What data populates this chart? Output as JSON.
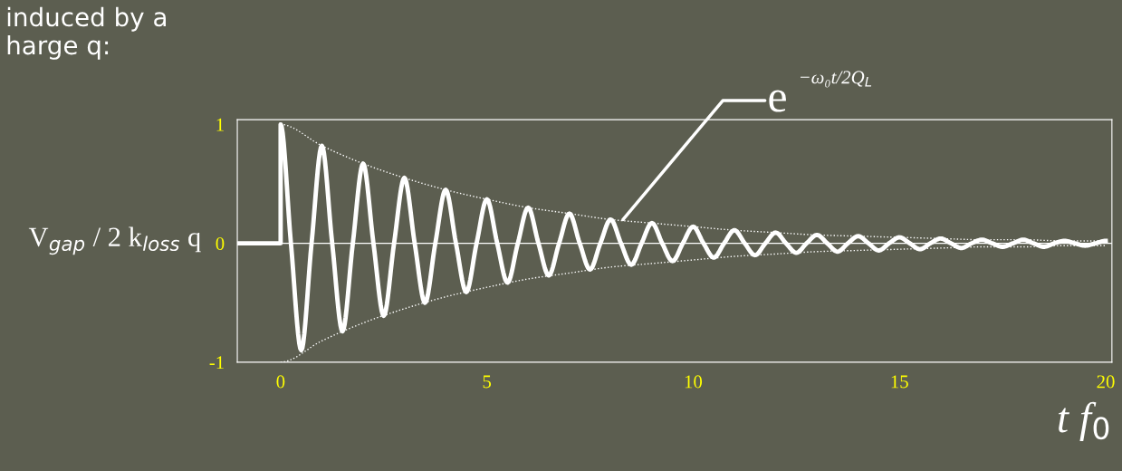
{
  "chart_data": {
    "type": "line",
    "xlabel": "t f$_{0}$",
    "ylabel": "V$_{gap}$ / 2 k$_{loss}$ q",
    "annotations": [
      "induced by a\nharge q:",
      {
        "text": "e",
        "x": 8.3,
        "y": 0.2
      },
      "−ω₀t/2Q$_{L}$"
    ],
    "series": [
      {
        "color": "#ffffff",
        "line_style": "solid",
        "x": [
          -1.05,
          0,
          0,
          0.25,
          0.5,
          0.75,
          1,
          1.25,
          1.5,
          1.75,
          2,
          2.25,
          2.5,
          2.75,
          3,
          3.25,
          3.5,
          3.75,
          4,
          4.25,
          4.5,
          4.75,
          5,
          5.25,
          5.5,
          5.75,
          6,
          6.25,
          6.5,
          6.75,
          7,
          7.25,
          7.5,
          7.75,
          8,
          8.25,
          8.5,
          8.75,
          9,
          9.25,
          9.5,
          9.75,
          10,
          10.25,
          10.5,
          10.75,
          11,
          11.25,
          11.5,
          11.75,
          12,
          12.25,
          12.5,
          12.75,
          13,
          13.25,
          13.5,
          13.75,
          14,
          14.25,
          14.5,
          14.75,
          15,
          15.25,
          15.5,
          15.75,
          16,
          16.25,
          16.5,
          16.75,
          17,
          17.25,
          17.5,
          17.75,
          18,
          18.25,
          18.5,
          18.75,
          19,
          19.25,
          19.5,
          19.75,
          20
        ],
        "values": [
          0,
          0,
          1,
          0,
          -0.9,
          0,
          0.82,
          0,
          -0.74,
          0,
          0.67,
          0,
          -0.61,
          0,
          0.55,
          0,
          -0.5,
          0,
          0.45,
          0,
          -0.41,
          0,
          0.37,
          0,
          -0.33,
          0,
          0.3,
          0,
          -0.27,
          0,
          0.25,
          0,
          -0.22,
          0,
          0.2,
          0,
          -0.18,
          0,
          0.17,
          0,
          -0.15,
          0,
          0.14,
          0,
          -0.12,
          0,
          0.11,
          0,
          -0.1,
          0,
          0.09,
          0,
          -0.08,
          0,
          0.07,
          0,
          -0.07,
          0,
          0.06,
          0,
          -0.06,
          0,
          0.05,
          0,
          -0.05,
          0,
          0.04,
          0,
          -0.04,
          0,
          0.03,
          0,
          -0.03,
          0,
          0.03,
          0,
          -0.03,
          0,
          0.02,
          0,
          -0.02,
          0,
          0.02
        ]
      },
      {
        "color": "#ffffff",
        "line_style": "dotted",
        "x": [
          0,
          1,
          2,
          3,
          4,
          5,
          6,
          7,
          8,
          9,
          10,
          11,
          12,
          13,
          14,
          15,
          16,
          17,
          18,
          19,
          20
        ],
        "values": [
          1,
          0.82,
          0.67,
          0.55,
          0.45,
          0.37,
          0.3,
          0.25,
          0.2,
          0.17,
          0.14,
          0.11,
          0.09,
          0.07,
          0.06,
          0.05,
          0.04,
          0.03,
          0.03,
          0.02,
          0.02
        ]
      },
      {
        "color": "#ffffff",
        "line_style": "dotted",
        "x": [
          0,
          1,
          2,
          3,
          4,
          5,
          6,
          7,
          8,
          9,
          10,
          11,
          12,
          13,
          14,
          15,
          16,
          17,
          18,
          19,
          20
        ],
        "values": [
          -1,
          -0.82,
          -0.67,
          -0.55,
          -0.45,
          -0.37,
          -0.3,
          -0.25,
          -0.2,
          -0.17,
          -0.14,
          -0.11,
          -0.09,
          -0.07,
          -0.06,
          -0.05,
          -0.04,
          -0.03,
          -0.03,
          -0.02,
          -0.02
        ]
      }
    ],
    "xlim": [
      -1.05,
      20.15
    ],
    "ylim": [
      -1,
      1.04
    ],
    "xticks": [
      0,
      5,
      10,
      15,
      20
    ],
    "yticks": [
      -1,
      0,
      1
    ],
    "ref_lines": [
      {
        "axis": "y",
        "value": 0,
        "color": "#ffffff",
        "line_style": "solid"
      }
    ],
    "grid": false,
    "legend": false
  }
}
